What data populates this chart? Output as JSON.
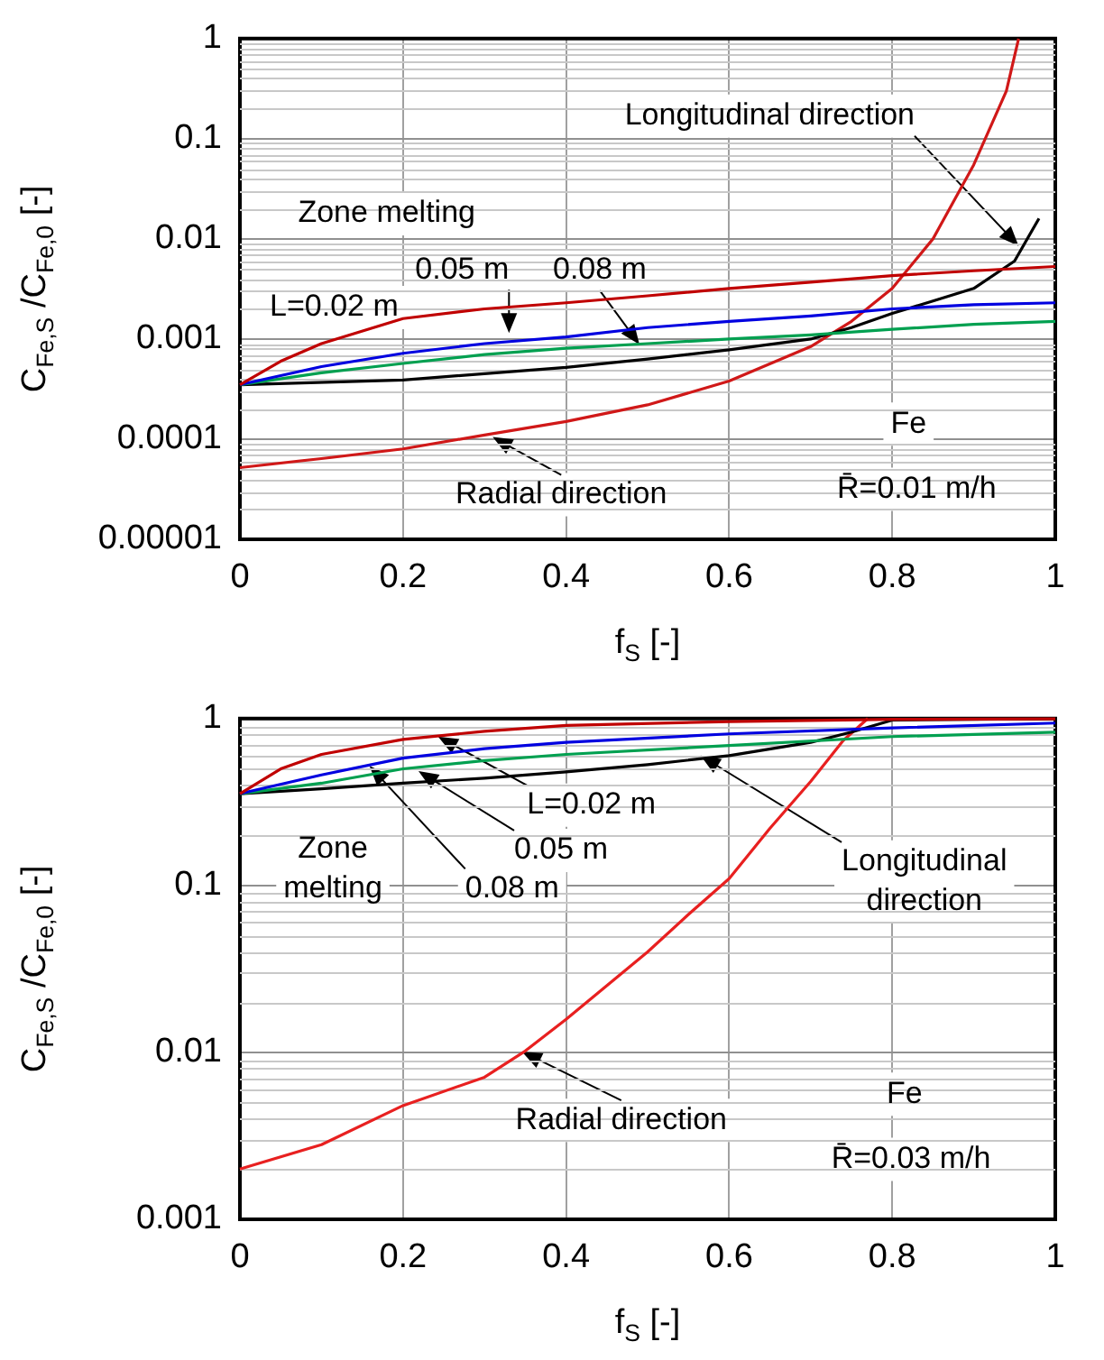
{
  "chart_data": [
    {
      "type": "line",
      "xlabel": "f$_{S}$ [-]",
      "ylabel": "C$_{Fe,S}$ /C$_{Fe,0}$ [-]",
      "log": true,
      "grid": true,
      "xlim": [
        0,
        1
      ],
      "xticks": [
        0,
        0.2,
        0.4,
        0.6,
        0.8,
        1
      ],
      "ylim": [
        1e-05,
        1
      ],
      "yticks": [
        {
          "value": 1e-05,
          "label": "0.00001"
        },
        0.0001,
        0.001,
        0.01,
        0.1,
        1
      ],
      "series": [
        {
          "color": "#c00000",
          "x": [
            0,
            0.05,
            0.1,
            0.2,
            0.3,
            0.4,
            0.5,
            0.6,
            0.7,
            0.8,
            0.9,
            1
          ],
          "values": [
            0.00035,
            0.0006,
            0.0009,
            0.0016,
            0.002,
            0.0023,
            0.0027,
            0.0032,
            0.0037,
            0.0043,
            0.0048,
            0.0053
          ]
        },
        {
          "color": "#0000e0",
          "x": [
            0,
            0.1,
            0.2,
            0.3,
            0.4,
            0.5,
            0.6,
            0.7,
            0.8,
            0.9,
            1
          ],
          "values": [
            0.00035,
            0.00053,
            0.00072,
            0.0009,
            0.00105,
            0.0013,
            0.0015,
            0.0017,
            0.002,
            0.0022,
            0.0023
          ]
        },
        {
          "color": "#00a050",
          "x": [
            0,
            0.1,
            0.2,
            0.3,
            0.4,
            0.5,
            0.6,
            0.7,
            0.8,
            0.9,
            1
          ],
          "values": [
            0.00035,
            0.00046,
            0.00057,
            0.0007,
            0.00081,
            0.0009,
            0.001,
            0.0011,
            0.00125,
            0.0014,
            0.0015
          ]
        },
        {
          "color": "#000000",
          "x": [
            0,
            0.2,
            0.4,
            0.5,
            0.6,
            0.7,
            0.75,
            0.8,
            0.85,
            0.9,
            0.95,
            0.98
          ],
          "values": [
            0.00035,
            0.00039,
            0.00052,
            0.00063,
            0.00078,
            0.001,
            0.0013,
            0.0018,
            0.0024,
            0.0032,
            0.006,
            0.016
          ]
        },
        {
          "color": "#d01818",
          "x": [
            0,
            0.1,
            0.2,
            0.3,
            0.4,
            0.5,
            0.6,
            0.7,
            0.75,
            0.8,
            0.85,
            0.9,
            0.94,
            0.955
          ],
          "values": [
            5.2e-05,
            6.4e-05,
            8e-05,
            0.00011,
            0.00015,
            0.00022,
            0.00038,
            0.00084,
            0.0015,
            0.0032,
            0.01,
            0.055,
            0.3,
            1
          ]
        }
      ],
      "annotations": [
        "Zone melting",
        {
          "text": "L=0.02 m",
          "x": 0.1,
          "y": 0.0009
        },
        {
          "text": "0.05 m",
          "x": 0.33,
          "y": 0.00115
        },
        {
          "text": "0.08 m",
          "x": 0.49,
          "y": 0.00088
        },
        {
          "text": "Longitudinal direction",
          "x": 0.955,
          "y": 0.0085
        },
        {
          "text": "Radial direction",
          "x": 0.31,
          "y": 0.000105
        },
        "Fe",
        "R̄=0.01 m/h"
      ]
    },
    {
      "type": "line",
      "xlabel": "f$_{S}$ [-]",
      "ylabel": "C$_{Fe,S}$ /C$_{Fe,0}$ [-]",
      "log": true,
      "grid": true,
      "xlim": [
        0,
        1
      ],
      "xticks": [
        0,
        0.2,
        0.4,
        0.6,
        0.8,
        1
      ],
      "ylim": [
        0.001,
        1
      ],
      "yticks": [
        0.001,
        0.01,
        0.1,
        1
      ],
      "series": [
        {
          "color": "#c00000",
          "x": [
            0,
            0.05,
            0.1,
            0.2,
            0.3,
            0.4,
            0.6,
            0.8,
            1
          ],
          "values": [
            0.355,
            0.5,
            0.61,
            0.75,
            0.84,
            0.91,
            0.96,
            0.99,
            0.995
          ]
        },
        {
          "color": "#0000e0",
          "x": [
            0,
            0.1,
            0.2,
            0.3,
            0.4,
            0.6,
            0.8,
            1
          ],
          "values": [
            0.355,
            0.46,
            0.58,
            0.66,
            0.72,
            0.81,
            0.88,
            0.94
          ]
        },
        {
          "color": "#00a050",
          "x": [
            0,
            0.1,
            0.2,
            0.3,
            0.4,
            0.6,
            0.8,
            1
          ],
          "values": [
            0.355,
            0.41,
            0.5,
            0.56,
            0.61,
            0.69,
            0.78,
            0.83
          ]
        },
        {
          "color": "#000000",
          "x": [
            0,
            0.1,
            0.2,
            0.3,
            0.4,
            0.5,
            0.6,
            0.7,
            0.75,
            0.8,
            1
          ],
          "values": [
            0.355,
            0.38,
            0.41,
            0.44,
            0.48,
            0.53,
            0.6,
            0.72,
            0.83,
            0.98,
            1
          ]
        },
        {
          "color": "#e82020",
          "x": [
            0,
            0.1,
            0.2,
            0.3,
            0.35,
            0.4,
            0.5,
            0.55,
            0.6,
            0.65,
            0.7,
            0.74,
            0.77
          ],
          "values": [
            0.002,
            0.0028,
            0.0048,
            0.0071,
            0.0102,
            0.0158,
            0.04,
            0.067,
            0.11,
            0.22,
            0.42,
            0.74,
            1
          ]
        }
      ],
      "annotations": [
        {
          "text": "L=0.02 m",
          "x": 0.243,
          "y": 0.78
        },
        {
          "text": "0.05 m",
          "x": 0.219,
          "y": 0.485
        },
        {
          "text": "0.08 m",
          "x": 0.159,
          "y": 0.52
        },
        "Zone melting",
        {
          "text": "Longitudinal direction",
          "x": 0.565,
          "y": 0.6
        },
        {
          "text": "Radial direction",
          "x": 0.346,
          "y": 0.0101
        },
        "Fe",
        "R̄=0.03 m/h"
      ]
    }
  ]
}
